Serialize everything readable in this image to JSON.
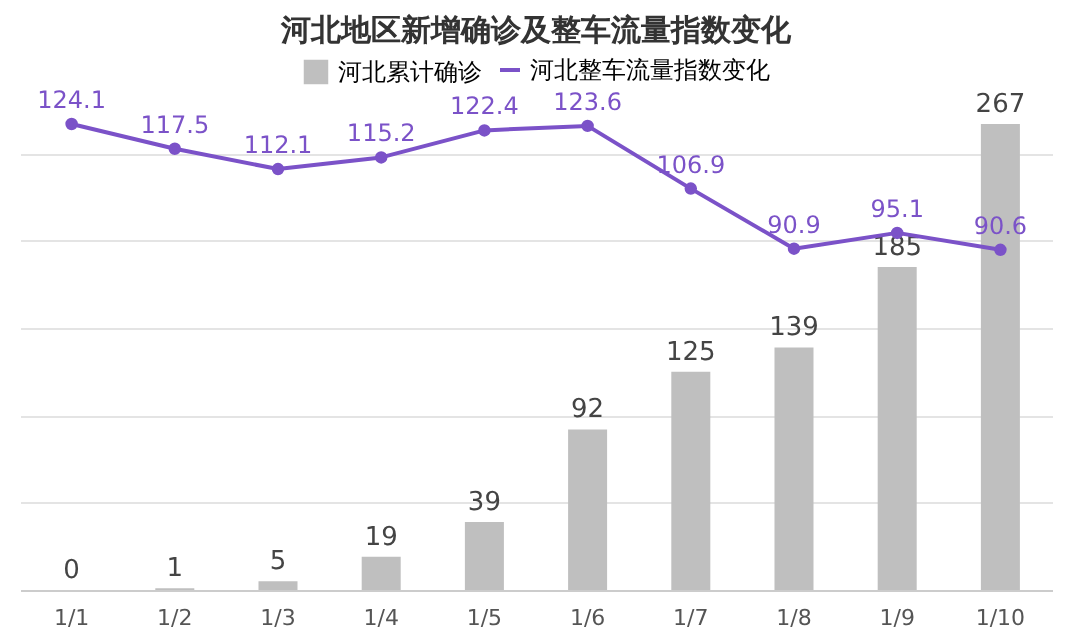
{
  "chart_data": {
    "type": "bar",
    "title": "河北地区新增确诊及整车流量指数变化",
    "categories": [
      "1/1",
      "1/2",
      "1/3",
      "1/4",
      "1/5",
      "1/6",
      "1/7",
      "1/8",
      "1/9",
      "1/10"
    ],
    "series": [
      {
        "name": "河北累计确诊",
        "color": "#bfbfbf",
        "values": [
          0,
          1,
          5,
          19,
          39,
          92,
          125,
          139,
          185,
          267
        ]
      },
      {
        "name": "河北整车流量指数变化",
        "type": "line",
        "axis": "y2",
        "color": "#7b52c8",
        "values": [
          124.1,
          117.5,
          112.1,
          115.2,
          122.4,
          123.6,
          106.9,
          90.9,
          95.1,
          90.6
        ]
      }
    ],
    "data_labels": true,
    "grid": "y",
    "legend": "top",
    "tick_labels": "x",
    "marker": "circle",
    "line_style": "solid"
  }
}
